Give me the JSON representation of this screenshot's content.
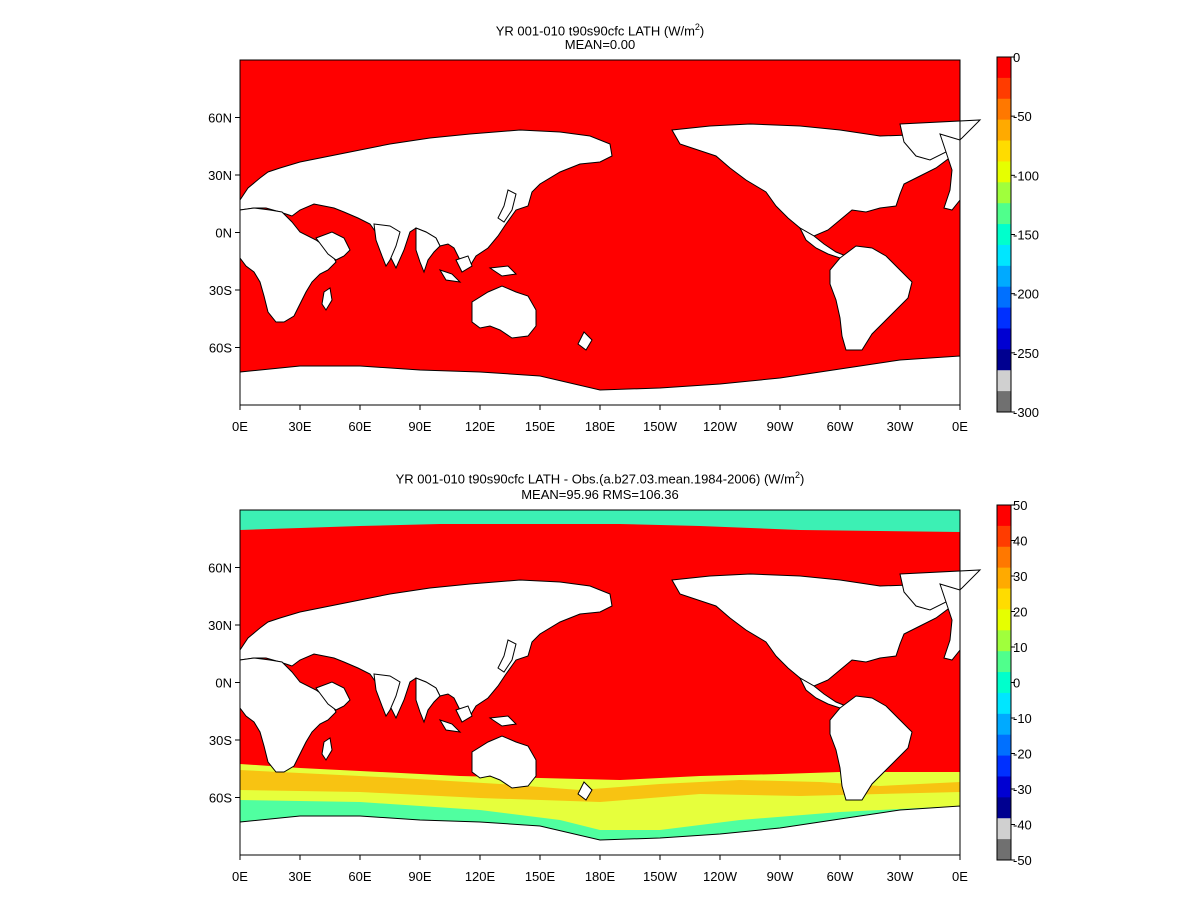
{
  "panels": [
    {
      "title_prefix": "YR 001-010 t90s90cfc  LATH (W/m",
      "title_sup": "2",
      "title_suffix": ")",
      "subtitle": "MEAN=0.00",
      "lon_ticks": [
        "0E",
        "30E",
        "60E",
        "90E",
        "120E",
        "150E",
        "180E",
        "150W",
        "120W",
        "90W",
        "60W",
        "30W",
        "0E"
      ],
      "lat_ticks": [
        "60N",
        "30N",
        "0N",
        "30S",
        "60S"
      ],
      "colorbar_labels": [
        "0",
        "-50",
        "-100",
        "-150",
        "-200",
        "-250",
        "-300"
      ],
      "colorbar_colors": [
        "#ff0000",
        "#ff3c00",
        "#ff7800",
        "#ffaa00",
        "#ffdc00",
        "#e6ff00",
        "#a0ff3c",
        "#50ff8c",
        "#00ffcc",
        "#00e6ff",
        "#00aaff",
        "#0070ff",
        "#0030ff",
        "#0000d2",
        "#000090",
        "#d0d0d0",
        "#707070"
      ],
      "ocean_color": "#ff0000"
    },
    {
      "title_prefix": "YR 001-010 t90s90cfc LATH - Obs.(a.b27.03.mean.1984-2006) (W/m",
      "title_sup": "2",
      "title_suffix": ")",
      "subtitle": "MEAN=95.96 RMS=106.36",
      "lon_ticks": [
        "0E",
        "30E",
        "60E",
        "90E",
        "120E",
        "150E",
        "180E",
        "150W",
        "120W",
        "90W",
        "60W",
        "30W",
        "0E"
      ],
      "lat_ticks": [
        "60N",
        "30N",
        "0N",
        "30S",
        "60S"
      ],
      "colorbar_labels": [
        "50",
        "40",
        "30",
        "20",
        "10",
        "0",
        "-10",
        "-20",
        "-30",
        "-40",
        "-50"
      ],
      "colorbar_colors": [
        "#ff0000",
        "#ff3c00",
        "#ff7800",
        "#ffaa00",
        "#ffdc00",
        "#e6ff00",
        "#a0ff3c",
        "#50ff8c",
        "#00ffcc",
        "#00e6ff",
        "#00aaff",
        "#0070ff",
        "#0030ff",
        "#0000d2",
        "#000090",
        "#d0d0d0",
        "#707070"
      ],
      "ocean_color": "#ff0000"
    }
  ]
}
